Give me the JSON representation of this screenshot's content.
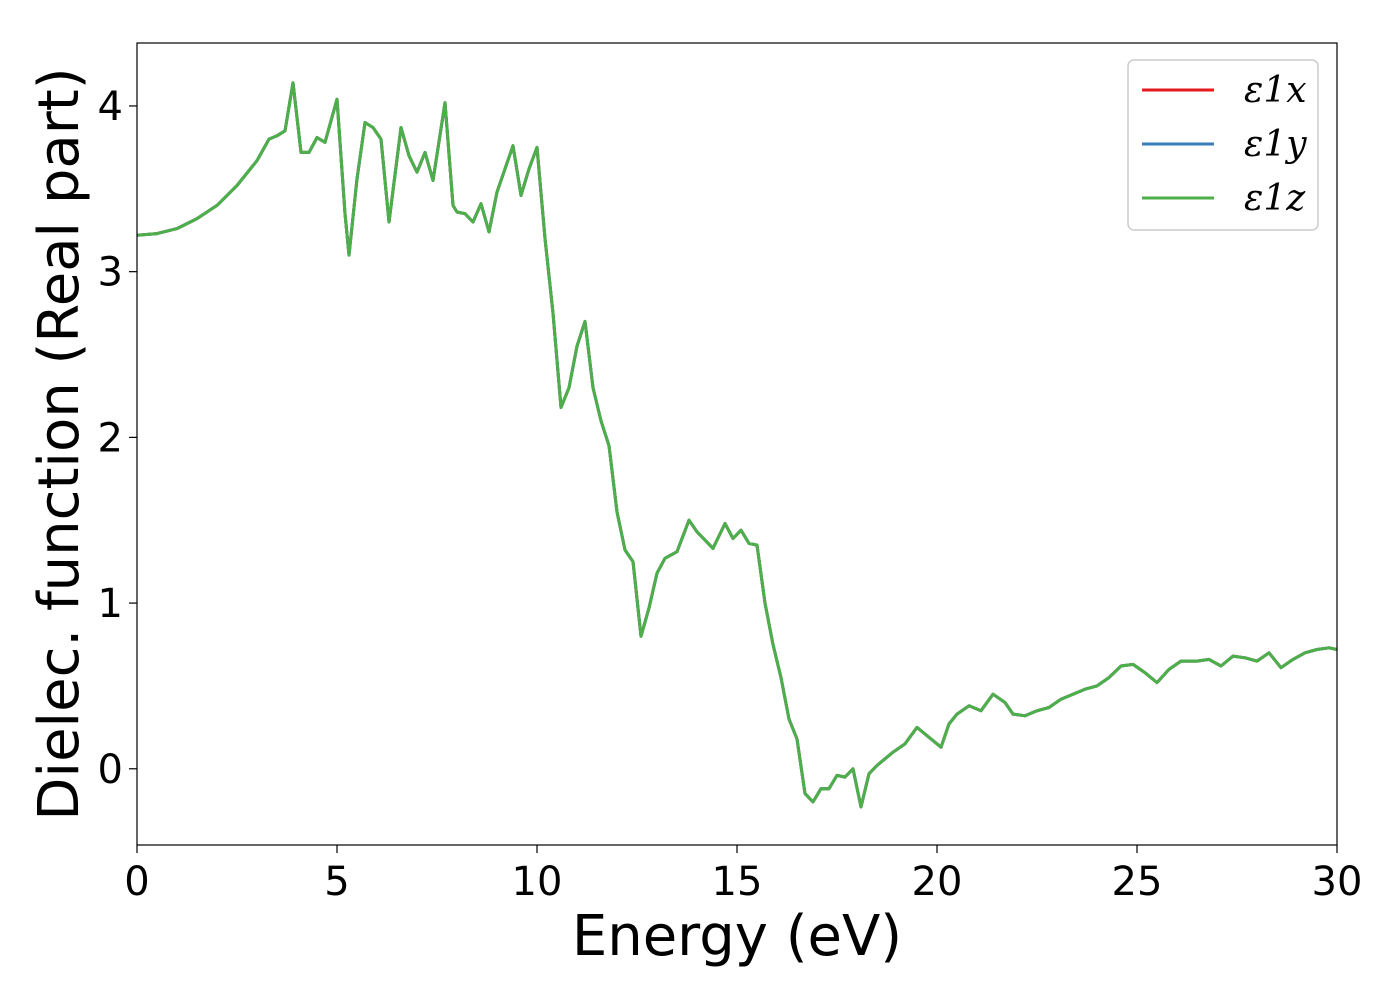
{
  "chart_data": {
    "type": "line",
    "xlabel": "Energy (eV)",
    "ylabel": "Dielec. function (Real part)",
    "xlim": [
      0,
      30
    ],
    "ylim": [
      -0.46,
      4.38
    ],
    "xticks": [
      0,
      5,
      10,
      15,
      20,
      25,
      30
    ],
    "xtick_labels": [
      "0",
      "5",
      "10",
      "15",
      "20",
      "25",
      "30"
    ],
    "yticks": [
      0,
      1,
      2,
      3,
      4
    ],
    "ytick_labels": [
      "0",
      "1",
      "2",
      "3",
      "4"
    ],
    "grid": false,
    "legend_position": "top-right",
    "series": [
      {
        "name": "ε1x",
        "color": "#e41a1c",
        "x": [
          0,
          0.5,
          1,
          1.5,
          2,
          2.5,
          3,
          3.3,
          3.5,
          3.7,
          3.9,
          4.1,
          4.3,
          4.5,
          4.7,
          5.0,
          5.2,
          5.3,
          5.5,
          5.7,
          5.9,
          6.1,
          6.3,
          6.6,
          6.8,
          7.0,
          7.2,
          7.4,
          7.7,
          7.9,
          8.0,
          8.2,
          8.4,
          8.6,
          8.8,
          9.0,
          9.2,
          9.4,
          9.6,
          9.8,
          10.0,
          10.2,
          10.4,
          10.6,
          10.8,
          11.0,
          11.2,
          11.4,
          11.6,
          11.8,
          12.0,
          12.2,
          12.4,
          12.6,
          12.8,
          13.0,
          13.2,
          13.5,
          13.8,
          14.0,
          14.2,
          14.4,
          14.7,
          14.9,
          15.1,
          15.3,
          15.5,
          15.7,
          15.9,
          16.1,
          16.3,
          16.5,
          16.7,
          16.9,
          17.1,
          17.3,
          17.5,
          17.7,
          17.9,
          18.1,
          18.3,
          18.5,
          18.7,
          18.9,
          19.2,
          19.5,
          19.8,
          20.1,
          20.3,
          20.5,
          20.8,
          21.1,
          21.4,
          21.7,
          21.9,
          22.2,
          22.5,
          22.8,
          23.1,
          23.4,
          23.7,
          24.0,
          24.3,
          24.6,
          24.9,
          25.2,
          25.5,
          25.8,
          26.1,
          26.5,
          26.8,
          27.1,
          27.4,
          27.7,
          28.0,
          28.3,
          28.6,
          28.9,
          29.2,
          29.5,
          29.8,
          30.0
        ],
        "y": [
          3.22,
          3.23,
          3.26,
          3.32,
          3.4,
          3.52,
          3.67,
          3.8,
          3.82,
          3.85,
          4.14,
          3.72,
          3.72,
          3.81,
          3.78,
          4.04,
          3.35,
          3.1,
          3.56,
          3.9,
          3.87,
          3.8,
          3.3,
          3.87,
          3.7,
          3.6,
          3.72,
          3.55,
          4.02,
          3.4,
          3.36,
          3.35,
          3.3,
          3.41,
          3.24,
          3.48,
          3.62,
          3.76,
          3.46,
          3.62,
          3.75,
          3.2,
          2.75,
          2.18,
          2.3,
          2.55,
          2.7,
          2.3,
          2.1,
          1.95,
          1.55,
          1.32,
          1.25,
          0.8,
          0.97,
          1.18,
          1.27,
          1.31,
          1.5,
          1.43,
          1.38,
          1.33,
          1.48,
          1.39,
          1.44,
          1.36,
          1.35,
          1.0,
          0.75,
          0.55,
          0.3,
          0.18,
          -0.15,
          -0.2,
          -0.12,
          -0.12,
          -0.04,
          -0.05,
          0.0,
          -0.23,
          -0.03,
          0.02,
          0.06,
          0.1,
          0.15,
          0.25,
          0.19,
          0.13,
          0.27,
          0.33,
          0.38,
          0.35,
          0.45,
          0.4,
          0.33,
          0.32,
          0.35,
          0.37,
          0.42,
          0.45,
          0.48,
          0.5,
          0.55,
          0.62,
          0.63,
          0.58,
          0.52,
          0.6,
          0.65,
          0.65,
          0.66,
          0.62,
          0.68,
          0.67,
          0.65,
          0.7,
          0.61,
          0.66,
          0.7,
          0.72,
          0.73,
          0.72
        ]
      },
      {
        "name": "ε1y",
        "color": "#377eb8",
        "same_as": "ε1x"
      },
      {
        "name": "ε1z",
        "color": "#4daf4a",
        "same_as": "ε1x"
      }
    ]
  }
}
